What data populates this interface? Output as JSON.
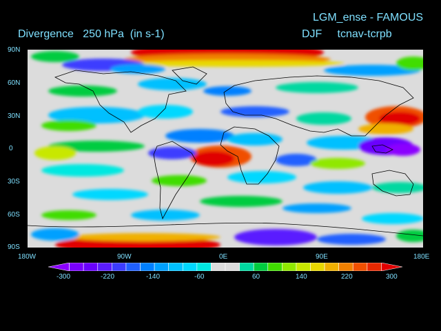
{
  "header": {
    "run_title": "LGM_ense - FAMOUS",
    "field_title": "Divergence   250 hPa  (in s-1)",
    "season_title": "DJF     tcnav-tcrpb"
  },
  "map": {
    "lat_labels": [
      "90N",
      "60N",
      "30N",
      "0",
      "30S",
      "60S",
      "90S"
    ],
    "lon_labels": [
      "180W",
      "90W",
      "0E",
      "90E",
      "180E"
    ],
    "background_color": "#dcdcdc",
    "coastline_color": "#000000"
  },
  "colorbar": {
    "tick_labels": [
      "-300",
      "-220",
      "-140",
      "-60",
      "60",
      "140",
      "220",
      "300"
    ],
    "colors": [
      "#8b00ff",
      "#7a00ff",
      "#6a00ff",
      "#5a1cff",
      "#3c3cff",
      "#2060ff",
      "#0080ff",
      "#00a0ff",
      "#00c0ff",
      "#00d8ff",
      "#00e8e0",
      "#dcdcdc",
      "#dcdcdc",
      "#00d8a0",
      "#00cc40",
      "#40dd00",
      "#90e800",
      "#c8e800",
      "#e8d800",
      "#f0b000",
      "#f08000",
      "#f05000",
      "#e82800",
      "#e00000"
    ]
  }
}
